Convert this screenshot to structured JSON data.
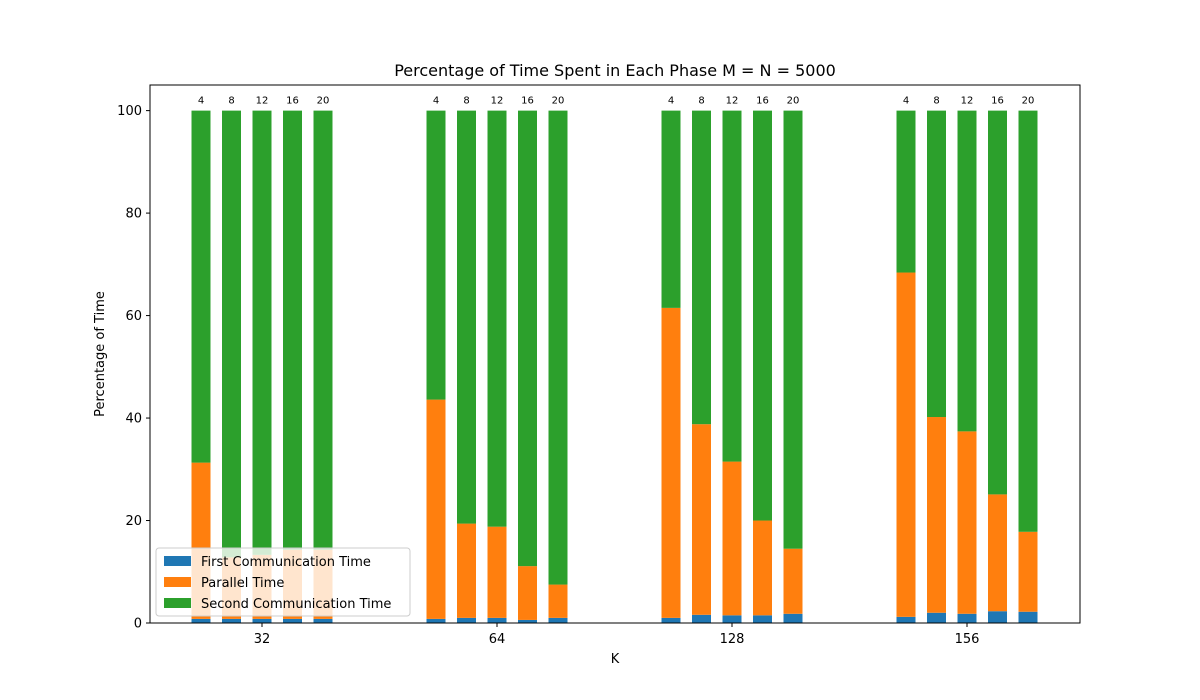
{
  "chart_data": {
    "type": "bar",
    "stacked": true,
    "title": "Percentage of Time Spent in Each Phase M = N = 5000",
    "xlabel": "K",
    "ylabel": "Percentage of Time",
    "ylim": [
      0,
      105
    ],
    "yticks": [
      0,
      20,
      40,
      60,
      80,
      100
    ],
    "categories": [
      "32",
      "64",
      "128",
      "156"
    ],
    "bar_labels": [
      "4",
      "8",
      "12",
      "16",
      "20"
    ],
    "legend_position": "lower-left",
    "grid": false,
    "series": [
      {
        "name": "First Communication Time",
        "color": "#1f77b4",
        "values": [
          [
            0.8,
            0.8,
            0.8,
            0.8,
            0.8
          ],
          [
            0.8,
            1.0,
            1.0,
            0.6,
            1.0
          ],
          [
            1.0,
            1.6,
            1.5,
            1.5,
            1.8
          ],
          [
            1.2,
            2.0,
            1.8,
            2.3,
            2.2
          ]
        ]
      },
      {
        "name": "Parallel Time",
        "color": "#ff7f0e",
        "values": [
          [
            30.5,
            12.0,
            12.5,
            13.5,
            13.5
          ],
          [
            42.8,
            18.4,
            17.8,
            10.5,
            6.5
          ],
          [
            60.5,
            37.2,
            30.0,
            18.5,
            12.7
          ],
          [
            67.2,
            38.2,
            35.6,
            22.8,
            15.6
          ]
        ]
      },
      {
        "name": "Second Communication Time",
        "color": "#2ca02c",
        "values": [
          [
            68.7,
            87.2,
            86.7,
            85.7,
            85.7
          ],
          [
            56.4,
            80.6,
            81.2,
            88.9,
            92.5
          ],
          [
            38.5,
            61.2,
            68.5,
            80.0,
            85.5
          ],
          [
            31.6,
            59.8,
            62.6,
            74.9,
            82.2
          ]
        ]
      }
    ]
  }
}
